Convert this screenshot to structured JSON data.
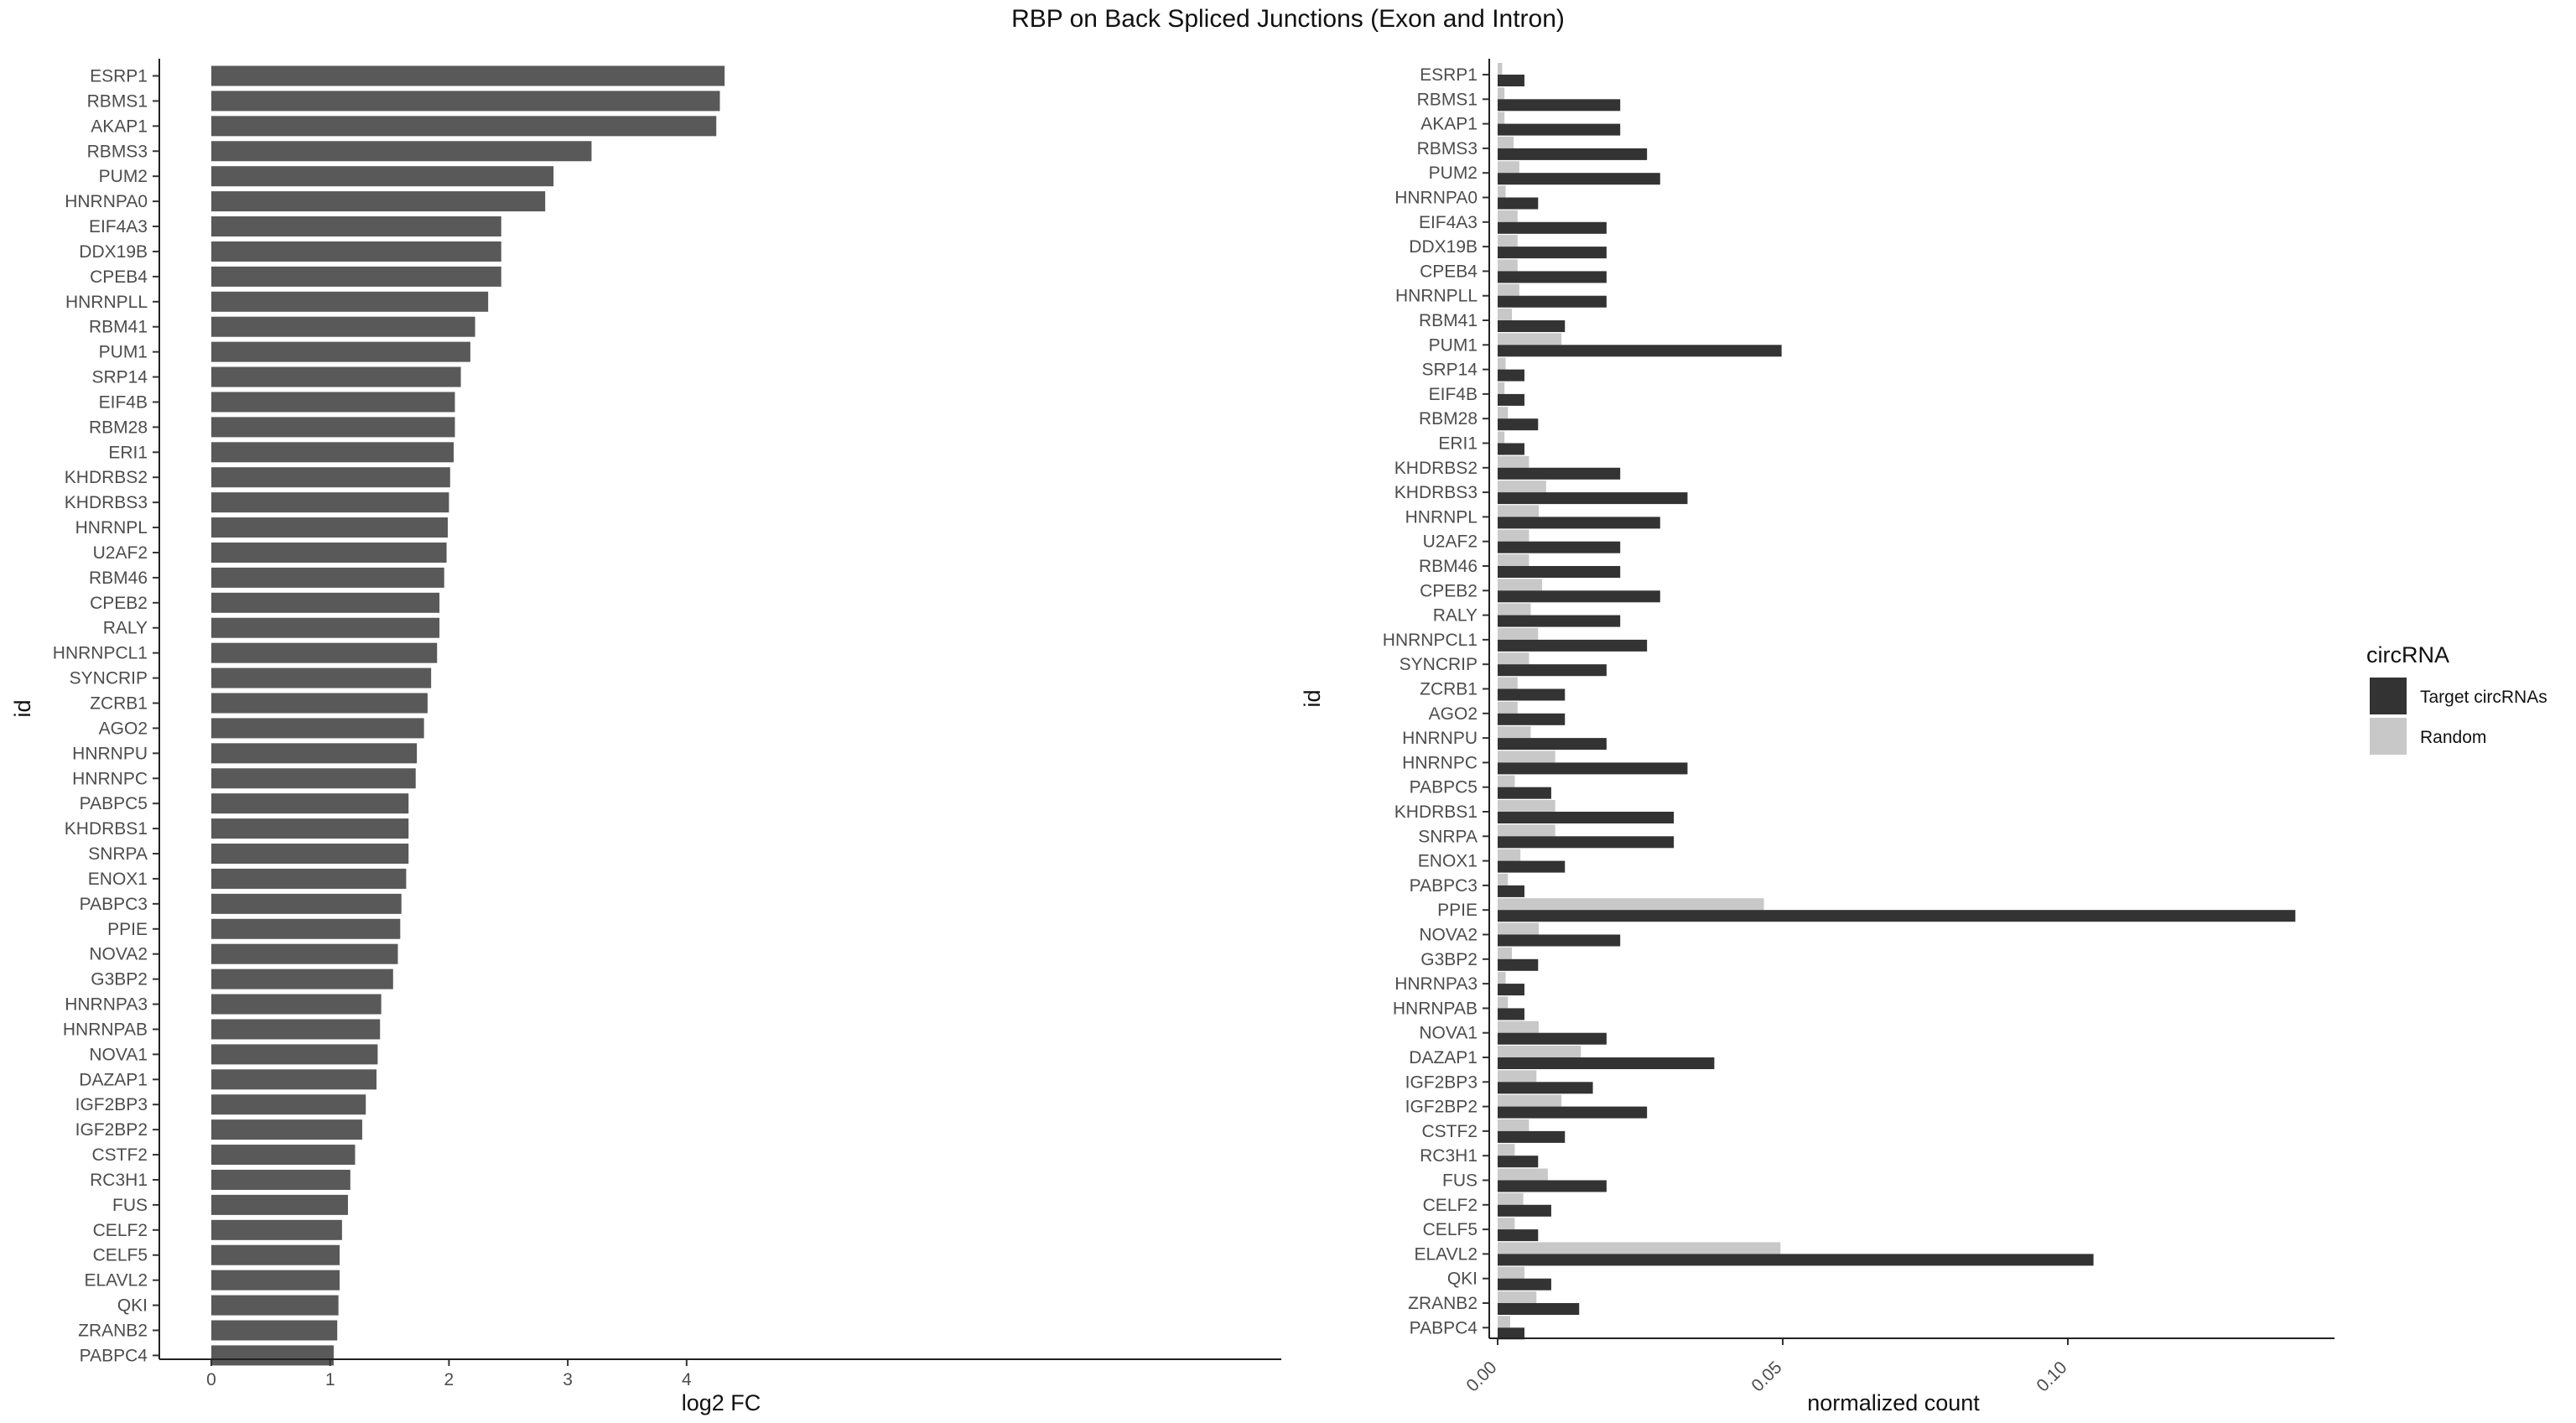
{
  "title": "RBP on Back Spliced Junctions (Exon and Intron)",
  "chart_data": [
    {
      "type": "bar",
      "orientation": "horizontal",
      "xlabel": "log2 FC",
      "ylabel": "id",
      "xlim": [
        0,
        4.5
      ],
      "xticks": [
        0,
        1,
        2,
        3,
        4
      ],
      "bar_color": "#595959",
      "categories": [
        "ESRP1",
        "RBMS1",
        "AKAP1",
        "RBMS3",
        "PUM2",
        "HNRNPA0",
        "EIF4A3",
        "DDX19B",
        "CPEB4",
        "HNRNPLL",
        "RBM41",
        "PUM1",
        "SRP14",
        "EIF4B",
        "RBM28",
        "ERI1",
        "KHDRBS2",
        "KHDRBS3",
        "HNRNPL",
        "U2AF2",
        "RBM46",
        "CPEB2",
        "RALY",
        "HNRNPCL1",
        "SYNCRIP",
        "ZCRB1",
        "AGO2",
        "HNRNPU",
        "HNRNPC",
        "PABPC5",
        "KHDRBS1",
        "SNRPA",
        "ENOX1",
        "PABPC3",
        "PPIE",
        "NOVA2",
        "G3BP2",
        "HNRNPA3",
        "HNRNPAB",
        "NOVA1",
        "DAZAP1",
        "IGF2BP3",
        "IGF2BP2",
        "CSTF2",
        "RC3H1",
        "FUS",
        "CELF2",
        "CELF5",
        "ELAVL2",
        "QKI",
        "ZRANB2",
        "PABPC4"
      ],
      "values": [
        4.32,
        4.28,
        4.25,
        3.2,
        2.88,
        2.81,
        2.44,
        2.44,
        2.44,
        2.33,
        2.22,
        2.18,
        2.1,
        2.05,
        2.05,
        2.04,
        2.01,
        2.0,
        1.99,
        1.98,
        1.96,
        1.92,
        1.92,
        1.9,
        1.85,
        1.82,
        1.79,
        1.73,
        1.72,
        1.66,
        1.66,
        1.66,
        1.64,
        1.6,
        1.59,
        1.57,
        1.53,
        1.43,
        1.42,
        1.4,
        1.39,
        1.3,
        1.27,
        1.21,
        1.17,
        1.15,
        1.1,
        1.08,
        1.08,
        1.07,
        1.06,
        1.03
      ]
    },
    {
      "type": "bar",
      "orientation": "horizontal",
      "grouped": true,
      "xlabel": "normalized count",
      "ylabel": "id",
      "xlim": [
        0,
        0.147
      ],
      "xticks": [
        0.0,
        0.05,
        0.1
      ],
      "xtick_labels": [
        "0.00",
        "0.05",
        "0.10"
      ],
      "legend_title": "circRNA",
      "legend_position": "right",
      "categories": [
        "ESRP1",
        "RBMS1",
        "AKAP1",
        "RBMS3",
        "PUM2",
        "HNRNPA0",
        "EIF4A3",
        "DDX19B",
        "CPEB4",
        "HNRNPLL",
        "RBM41",
        "PUM1",
        "SRP14",
        "EIF4B",
        "RBM28",
        "ERI1",
        "KHDRBS2",
        "KHDRBS3",
        "HNRNPL",
        "U2AF2",
        "RBM46",
        "CPEB2",
        "RALY",
        "HNRNPCL1",
        "SYNCRIP",
        "ZCRB1",
        "AGO2",
        "HNRNPU",
        "HNRNPC",
        "PABPC5",
        "KHDRBS1",
        "SNRPA",
        "ENOX1",
        "PABPC3",
        "PPIE",
        "NOVA2",
        "G3BP2",
        "HNRNPA3",
        "HNRNPAB",
        "NOVA1",
        "DAZAP1",
        "IGF2BP3",
        "IGF2BP2",
        "CSTF2",
        "RC3H1",
        "FUS",
        "CELF2",
        "CELF5",
        "ELAVL2",
        "QKI",
        "ZRANB2",
        "PABPC4"
      ],
      "series": [
        {
          "name": "Target circRNAs",
          "color": "#333333",
          "values": [
            0.0047,
            0.0215,
            0.0215,
            0.0262,
            0.0285,
            0.0071,
            0.0191,
            0.0191,
            0.0191,
            0.0191,
            0.0118,
            0.0498,
            0.0047,
            0.0047,
            0.0071,
            0.0047,
            0.0215,
            0.0333,
            0.0285,
            0.0215,
            0.0215,
            0.0285,
            0.0215,
            0.0262,
            0.0191,
            0.0118,
            0.0118,
            0.0191,
            0.0333,
            0.0094,
            0.0309,
            0.0309,
            0.0118,
            0.0047,
            0.1399,
            0.0215,
            0.0071,
            0.0047,
            0.0047,
            0.0191,
            0.038,
            0.0167,
            0.0262,
            0.0118,
            0.0071,
            0.0191,
            0.0094,
            0.0071,
            0.1045,
            0.0094,
            0.0143,
            0.0047
          ]
        },
        {
          "name": "Random",
          "color": "#c8c8c8",
          "values": [
            0.0008,
            0.0012,
            0.0012,
            0.0028,
            0.0038,
            0.0014,
            0.0035,
            0.0035,
            0.0035,
            0.0038,
            0.0025,
            0.0112,
            0.0014,
            0.0012,
            0.0018,
            0.0012,
            0.0055,
            0.0085,
            0.0072,
            0.0055,
            0.0055,
            0.0078,
            0.0058,
            0.0071,
            0.0055,
            0.0035,
            0.0035,
            0.0058,
            0.0101,
            0.003,
            0.0101,
            0.0101,
            0.004,
            0.0018,
            0.0467,
            0.0072,
            0.0025,
            0.0014,
            0.0018,
            0.0072,
            0.0146,
            0.0068,
            0.0112,
            0.0055,
            0.003,
            0.0088,
            0.0045,
            0.003,
            0.0496,
            0.0047,
            0.0068,
            0.0022
          ]
        }
      ]
    }
  ]
}
